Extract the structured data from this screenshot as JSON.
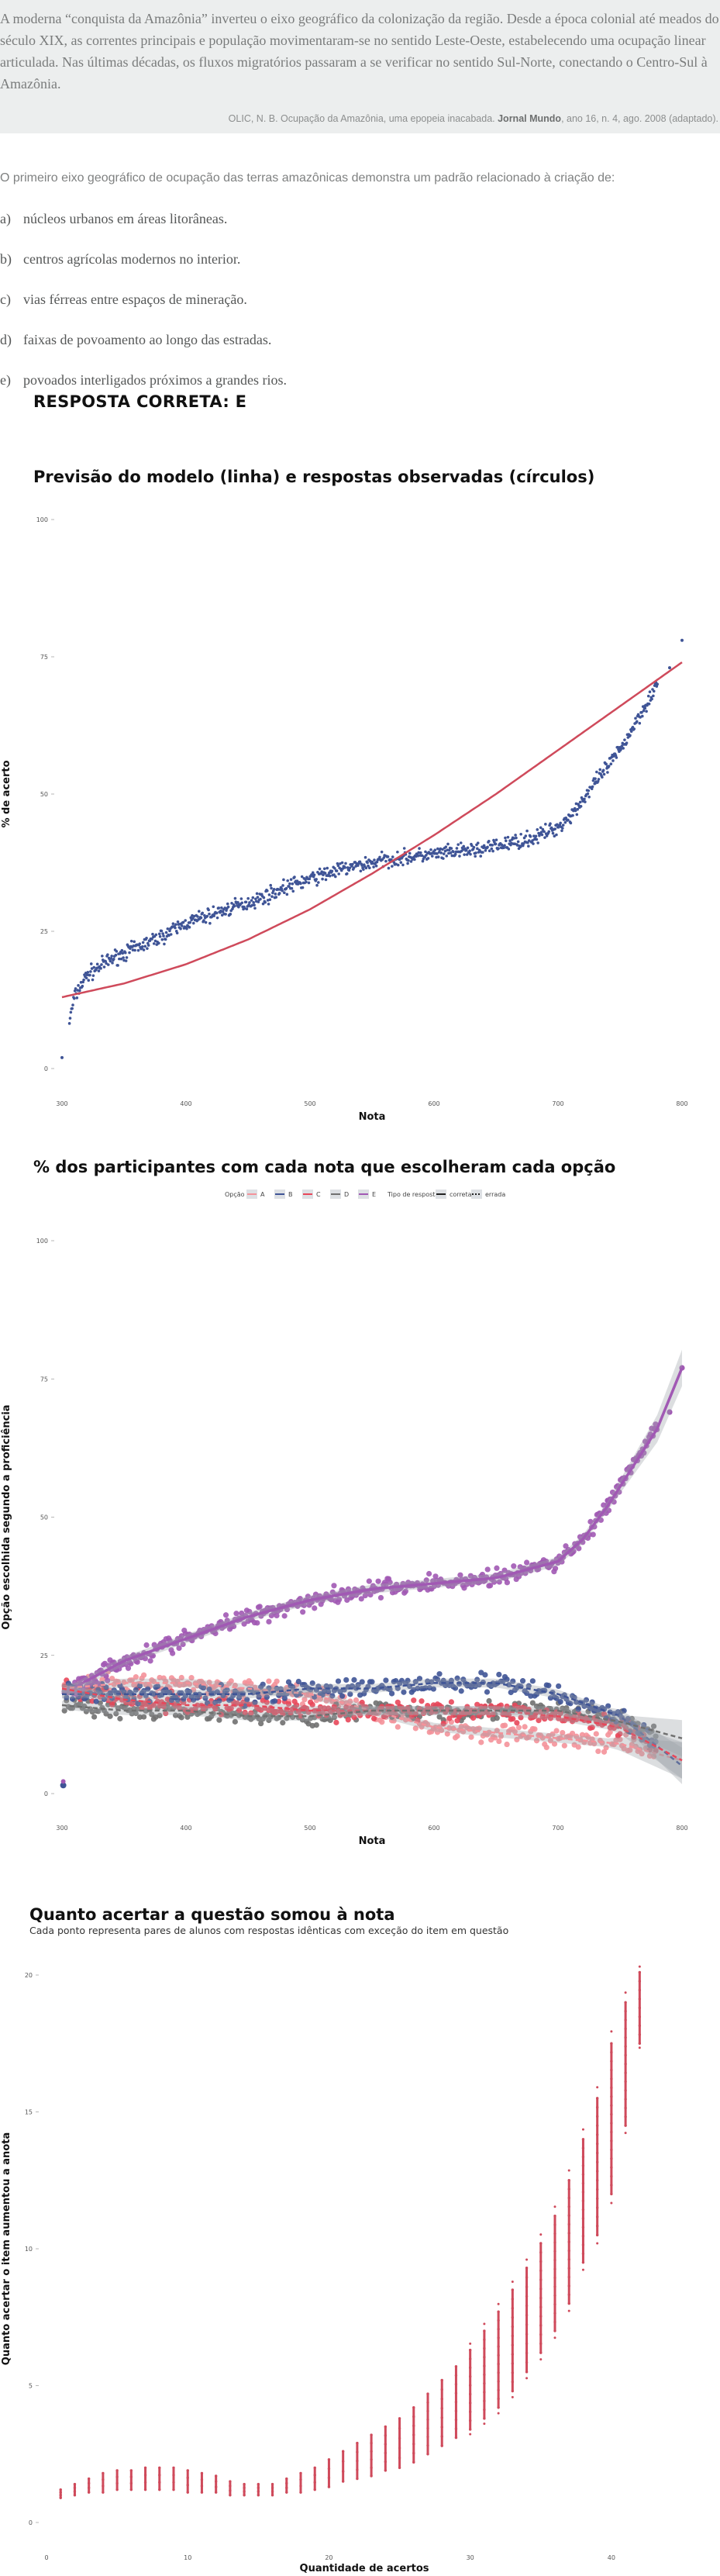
{
  "question": {
    "passage": "A moderna “conquista da Amazônia” inverteu o eixo geográfico da colonização da região. Desde a época colonial até meados do século XIX, as correntes principais e população movimentaram-se no sentido Leste-Oeste, estabelecendo uma ocupação linear articulada. Nas últimas décadas, os fluxos migratórios passaram a se verificar no sentido Sul-Norte, conectando o Centro-Sul à Amazônia.",
    "citation_pre": "OLIC, N. B. Ocupação da Amazônia, uma epopeia inacabada. ",
    "citation_bold": "Jornal Mundo",
    "citation_post": ", ano 16, n. 4, ago. 2008 (adaptado).",
    "stem": "O primeiro eixo geográfico de ocupação das terras amazônicas demonstra um padrão relacionado à criação de:",
    "options": [
      {
        "letter": "a)",
        "text": "núcleos urbanos em áreas litorâneas."
      },
      {
        "letter": "b)",
        "text": "centros agrícolas modernos no interior."
      },
      {
        "letter": "c)",
        "text": "vias férreas entre espaços de mineração."
      },
      {
        "letter": "d)",
        "text": "faixas de povoamento ao longo das estradas."
      },
      {
        "letter": "e)",
        "text": "povoados interligados próximos a grandes rios."
      }
    ],
    "answer": "RESPOSTA CORRETA: E"
  },
  "chart_data": [
    {
      "type": "scatter",
      "title": "Previsão do modelo (linha) e respostas observadas (círculos)",
      "xlabel": "Nota",
      "ylabel": "% de acerto",
      "xlim": [
        300,
        800
      ],
      "ylim": [
        0,
        100
      ],
      "xticks": [
        "300",
        "400",
        "500",
        "600",
        "700",
        "800"
      ],
      "yticks": [
        "0",
        "25",
        "50",
        "75",
        "100"
      ],
      "colors": {
        "points": "#3f5496",
        "line": "#cf4a5b"
      },
      "series": [
        {
          "points_x": [
            300,
            310,
            320,
            340,
            360,
            380,
            400,
            420,
            440,
            460,
            480,
            500,
            520,
            540,
            560,
            580,
            600,
            620,
            640,
            660,
            680,
            700,
            710,
            720,
            730,
            740,
            750,
            760,
            770,
            780,
            790,
            800
          ],
          "points_y": [
            2,
            13,
            17,
            20,
            22,
            24,
            26.5,
            28,
            29.5,
            31,
            33,
            34.5,
            36,
            37,
            38,
            38.5,
            39,
            39.5,
            40,
            41,
            42,
            44,
            46,
            49,
            52,
            55,
            58,
            62,
            66,
            70,
            73,
            78
          ]
        },
        {
          "model_x": [
            300,
            350,
            400,
            450,
            500,
            550,
            600,
            650,
            700,
            750,
            800
          ],
          "model_y": [
            13,
            15.5,
            19,
            23.5,
            29,
            35.5,
            42.5,
            50,
            58,
            66,
            74
          ]
        }
      ]
    },
    {
      "type": "scatter",
      "title": "% dos participantes com cada nota que escolheram cada opção",
      "xlabel": "Nota",
      "ylabel": "Opção escolhida segundo a proficiência",
      "xlim": [
        300,
        800
      ],
      "ylim": [
        0,
        100
      ],
      "xticks": [
        "300",
        "400",
        "500",
        "600",
        "700",
        "800"
      ],
      "yticks": [
        "0",
        "25",
        "50",
        "75",
        "100"
      ],
      "legend": {
        "title_options": "Opção",
        "options": [
          "A",
          "B",
          "C",
          "D",
          "E"
        ],
        "title_type": "Tipo de resposta",
        "types": [
          "correta",
          "errada"
        ],
        "placement": "top-center"
      },
      "colors": {
        "A": "#f4929a",
        "B": "#3f5496",
        "C": "#e8475a",
        "D": "#707070",
        "E": "#a159b4"
      },
      "series": [
        {
          "name": "E",
          "x": [
            300,
            350,
            400,
            450,
            500,
            550,
            600,
            650,
            700,
            720,
            740,
            760,
            780,
            800
          ],
          "y": [
            18,
            24,
            28,
            32,
            35,
            37,
            38,
            39,
            42,
            46,
            52,
            59,
            66,
            77
          ]
        },
        {
          "name": "A",
          "x": [
            300,
            350,
            400,
            450,
            500,
            550,
            600,
            650,
            700,
            750,
            800
          ],
          "y": [
            19,
            20,
            20,
            19,
            18,
            15,
            12,
            11,
            10,
            9,
            6
          ]
        },
        {
          "name": "B",
          "x": [
            300,
            350,
            400,
            450,
            500,
            550,
            600,
            650,
            700,
            750,
            800
          ],
          "y": [
            18,
            18,
            18,
            18,
            19,
            19,
            20,
            20,
            18,
            14,
            5
          ]
        },
        {
          "name": "C",
          "x": [
            300,
            350,
            400,
            450,
            500,
            550,
            600,
            650,
            700,
            750,
            800
          ],
          "y": [
            19,
            17,
            16,
            16,
            15,
            15,
            15,
            15,
            14,
            12,
            6
          ]
        },
        {
          "name": "D",
          "x": [
            300,
            350,
            400,
            450,
            500,
            550,
            600,
            650,
            700,
            750,
            800
          ],
          "y": [
            16,
            15,
            15,
            14,
            14,
            15,
            15,
            15,
            15,
            13,
            10
          ]
        }
      ]
    },
    {
      "type": "scatter",
      "title": "Quanto acertar a questão somou à nota",
      "subtitle": "Cada ponto representa pares de alunos com respostas idênticas com exceção do item em questão",
      "xlabel": "Quantidade de acertos",
      "ylabel": "Quanto acertar o item aumentou a anota",
      "xlim": [
        0,
        45
      ],
      "ylim": [
        0,
        20
      ],
      "xticks": [
        "0",
        "10",
        "20",
        "30",
        "40"
      ],
      "yticks": [
        "0",
        "5",
        "10",
        "15",
        "20"
      ],
      "colors": {
        "points": "#cf4a5b"
      },
      "series": [
        {
          "acertos": [
            1,
            2,
            3,
            4,
            5,
            6,
            7,
            8,
            9,
            10,
            11,
            12,
            13,
            14,
            15,
            16,
            17,
            18,
            19,
            20,
            21,
            22,
            23,
            24,
            25,
            26,
            27,
            28,
            29,
            30,
            31,
            32,
            33,
            34,
            35,
            36,
            37,
            38,
            39,
            40,
            41,
            42
          ],
          "aumento_min": [
            0.9,
            1.0,
            1.1,
            1.1,
            1.2,
            1.2,
            1.2,
            1.2,
            1.2,
            1.1,
            1.1,
            1.1,
            1.0,
            1.0,
            1.0,
            1.0,
            1.1,
            1.1,
            1.2,
            1.3,
            1.5,
            1.6,
            1.7,
            1.9,
            2.0,
            2.2,
            2.5,
            2.8,
            3.1,
            3.4,
            3.8,
            4.2,
            4.8,
            5.5,
            6.2,
            7.0,
            8.0,
            9.5,
            10.5,
            12.0,
            14.5,
            17.5
          ],
          "aumento_max": [
            1.2,
            1.4,
            1.6,
            1.8,
            1.9,
            1.9,
            2.0,
            2.0,
            2.0,
            1.9,
            1.8,
            1.7,
            1.5,
            1.4,
            1.4,
            1.4,
            1.6,
            1.8,
            2.0,
            2.3,
            2.6,
            2.9,
            3.2,
            3.5,
            3.8,
            4.2,
            4.7,
            5.2,
            5.7,
            6.3,
            7.0,
            7.7,
            8.5,
            9.3,
            10.2,
            11.2,
            12.5,
            14.0,
            15.5,
            17.5,
            19.0,
            20.1
          ]
        }
      ]
    }
  ]
}
